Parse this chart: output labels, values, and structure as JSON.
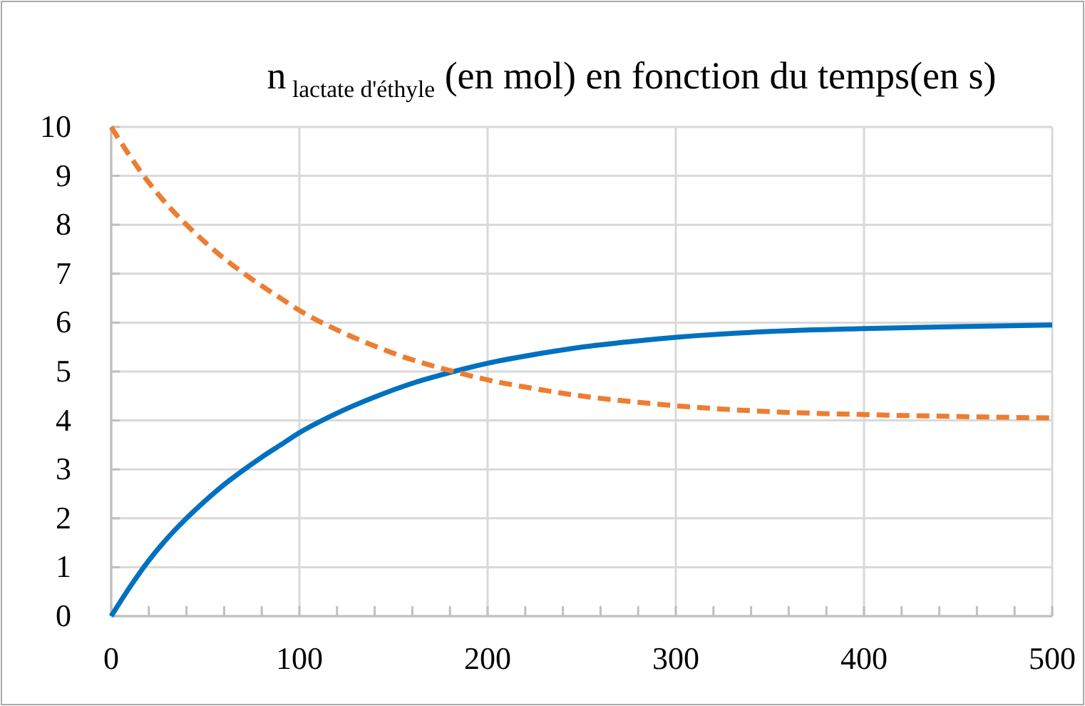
{
  "chart_data": {
    "type": "line",
    "title": "n$_{lactate d'éthyle}$ (en mol) en fonction du temps(en s)",
    "x": [
      0,
      10,
      20,
      30,
      40,
      50,
      60,
      70,
      80,
      90,
      100,
      120,
      140,
      160,
      180,
      200,
      225,
      250,
      275,
      300,
      350,
      400,
      450,
      500
    ],
    "series": [
      {
        "color": "#0070c0",
        "line_style": "solid",
        "values": [
          0,
          0.6,
          1.14,
          1.6,
          2.0,
          2.36,
          2.69,
          2.98,
          3.25,
          3.5,
          3.75,
          4.15,
          4.48,
          4.76,
          4.98,
          5.17,
          5.35,
          5.5,
          5.61,
          5.7,
          5.82,
          5.88,
          5.92,
          5.95
        ]
      },
      {
        "color": "#ed7d31",
        "line_style": "dashed",
        "values": [
          10,
          9.4,
          8.86,
          8.4,
          8.0,
          7.64,
          7.31,
          7.02,
          6.75,
          6.5,
          6.25,
          5.85,
          5.52,
          5.24,
          5.02,
          4.83,
          4.65,
          4.5,
          4.39,
          4.3,
          4.18,
          4.12,
          4.08,
          4.05
        ]
      }
    ],
    "xlim": [
      0,
      500
    ],
    "xticks": [
      0,
      {
        "value": 20,
        "label": null
      },
      {
        "value": 40,
        "label": null
      },
      {
        "value": 60,
        "label": null
      },
      {
        "value": 80,
        "label": null
      },
      100,
      {
        "value": 120,
        "label": null
      },
      {
        "value": 140,
        "label": null
      },
      {
        "value": 160,
        "label": null
      },
      {
        "value": 180,
        "label": null
      },
      200,
      {
        "value": 220,
        "label": null
      },
      {
        "value": 240,
        "label": null
      },
      {
        "value": 260,
        "label": null
      },
      {
        "value": 280,
        "label": null
      },
      300,
      {
        "value": 320,
        "label": null
      },
      {
        "value": 340,
        "label": null
      },
      {
        "value": 360,
        "label": null
      },
      {
        "value": 380,
        "label": null
      },
      400,
      {
        "value": 420,
        "label": null
      },
      {
        "value": 440,
        "label": null
      },
      {
        "value": 460,
        "label": null
      },
      {
        "value": 480,
        "label": null
      },
      500
    ],
    "ylim": [
      0,
      10
    ],
    "yticks": [
      0,
      1,
      2,
      3,
      4,
      5,
      6,
      7,
      8,
      9,
      10
    ],
    "grid": true,
    "marker": "none"
  }
}
